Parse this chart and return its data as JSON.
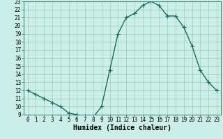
{
  "x": [
    0,
    1,
    2,
    3,
    4,
    5,
    6,
    7,
    8,
    9,
    10,
    11,
    12,
    13,
    14,
    15,
    16,
    17,
    18,
    19,
    20,
    21,
    22,
    23
  ],
  "y": [
    12.0,
    11.5,
    11.0,
    10.5,
    10.0,
    9.2,
    9.0,
    8.8,
    8.7,
    10.0,
    14.5,
    19.0,
    21.0,
    21.5,
    22.5,
    23.0,
    22.5,
    21.2,
    21.2,
    19.8,
    17.5,
    14.5,
    13.0,
    12.0
  ],
  "line_color": "#1a6b5a",
  "marker": "+",
  "markersize": 4,
  "linewidth": 1.0,
  "bg_color": "#cceee8",
  "grid_color": "#99ccbb",
  "xlabel": "Humidex (Indice chaleur)",
  "xlim": [
    -0.5,
    23.5
  ],
  "ylim": [
    9,
    23
  ],
  "xticks": [
    0,
    1,
    2,
    3,
    4,
    5,
    6,
    7,
    8,
    9,
    10,
    11,
    12,
    13,
    14,
    15,
    16,
    17,
    18,
    19,
    20,
    21,
    22,
    23
  ],
  "yticks": [
    9,
    10,
    11,
    12,
    13,
    14,
    15,
    16,
    17,
    18,
    19,
    20,
    21,
    22,
    23
  ],
  "xlabel_fontsize": 7,
  "tick_fontsize": 5.5
}
